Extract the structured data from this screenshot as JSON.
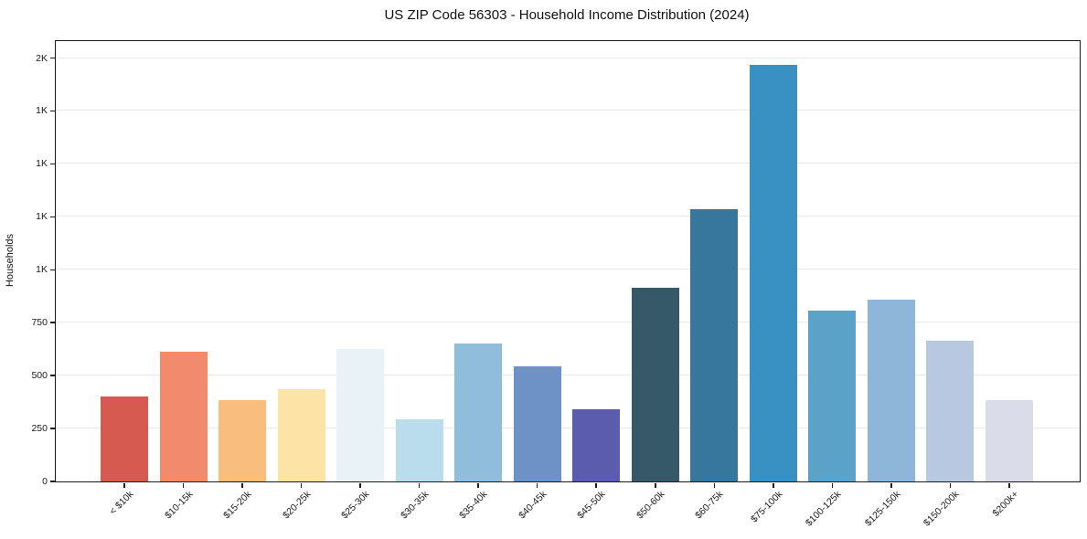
{
  "title": "US ZIP Code 56303 - Household Income Distribution (2024)",
  "chart_data": {
    "type": "bar",
    "title": "US ZIP Code 56303 - Household Income Distribution (2024)",
    "xlabel": "",
    "ylabel": "Households",
    "categories": [
      "< $10k",
      "$10-15k",
      "$15-20k",
      "$20-25k",
      "$25-30k",
      "$30-35k",
      "$35-40k",
      "$40-45k",
      "$45-50k",
      "$50-60k",
      "$60-75k",
      "$75-100k",
      "$100-125k",
      "$125-150k",
      "$150-200k",
      "$200k+"
    ],
    "values": [
      400,
      615,
      385,
      435,
      625,
      295,
      650,
      545,
      340,
      915,
      1285,
      1970,
      805,
      860,
      665,
      385
    ],
    "bar_colors": [
      "#d65a50",
      "#f28a6d",
      "#f9bd7d",
      "#fce3a6",
      "#e9f3f7",
      "#badded",
      "#90bddc",
      "#6e92c5",
      "#5c5cae",
      "#36596a",
      "#38779d",
      "#3990c2",
      "#5aa2c8",
      "#8db6d9",
      "#b6c9e1",
      "#dadcea"
    ],
    "ylim": [
      0,
      2080
    ],
    "yticks": [
      {
        "value": 0,
        "label": "0"
      },
      {
        "value": 250,
        "label": "250"
      },
      {
        "value": 500,
        "label": "500"
      },
      {
        "value": 750,
        "label": "750"
      },
      {
        "value": 1000,
        "label": "1K"
      },
      {
        "value": 1250,
        "label": "1K"
      },
      {
        "value": 1500,
        "label": "1K"
      },
      {
        "value": 1750,
        "label": "1K"
      },
      {
        "value": 2000,
        "label": "2K"
      }
    ],
    "grid": "horizontal",
    "grid_color": "#e9e9e9",
    "legend": "none",
    "background": "#ffffff",
    "xtick_rotation": 45
  }
}
